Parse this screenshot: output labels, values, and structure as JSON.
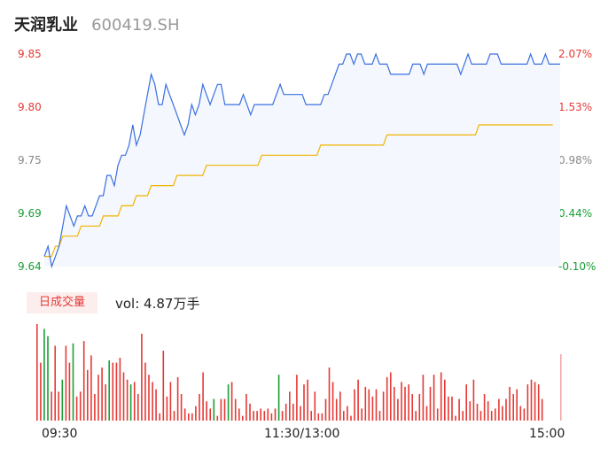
{
  "header": {
    "name": "天润乳业",
    "code": "600419.SH"
  },
  "colors": {
    "up": "#e53935",
    "down": "#1a9e36",
    "price_line": "#3a6fe0",
    "avg_line": "#f0b400",
    "flat": "#888888"
  },
  "volume_panel": {
    "tag": "日成交量",
    "vol_text": "vol: 4.87万手"
  },
  "chart_data": {
    "type": "line",
    "title": "",
    "price_axis": {
      "ticks": [
        "9.85",
        "9.80",
        "9.75",
        "9.69",
        "9.64"
      ],
      "min": 9.64,
      "max": 9.85
    },
    "pct_axis": {
      "ticks": [
        "2.07%",
        "1.53%",
        "0.98%",
        "0.44%",
        "-0.10%"
      ]
    },
    "x_ticks": [
      "09:30",
      "11:30/13:00",
      "15:00"
    ],
    "series": [
      {
        "name": "",
        "values": [
          9.65,
          9.66,
          9.64,
          9.65,
          9.66,
          9.68,
          9.7,
          9.69,
          9.68,
          9.69,
          9.69,
          9.7,
          9.69,
          9.69,
          9.7,
          9.71,
          9.71,
          9.73,
          9.73,
          9.72,
          9.74,
          9.75,
          9.75,
          9.76,
          9.78,
          9.76,
          9.77,
          9.79,
          9.81,
          9.83,
          9.82,
          9.8,
          9.8,
          9.82,
          9.81,
          9.8,
          9.79,
          9.78,
          9.77,
          9.78,
          9.8,
          9.79,
          9.8,
          9.82,
          9.81,
          9.8,
          9.81,
          9.82,
          9.82,
          9.8,
          9.8,
          9.8,
          9.8,
          9.8,
          9.81,
          9.8,
          9.79,
          9.8,
          9.8,
          9.8,
          9.8,
          9.8,
          9.8,
          9.81,
          9.82,
          9.81,
          9.81,
          9.81,
          9.81,
          9.81,
          9.81,
          9.8,
          9.8,
          9.8,
          9.8,
          9.8,
          9.81,
          9.81,
          9.82,
          9.83,
          9.84,
          9.84,
          9.85,
          9.85,
          9.84,
          9.85,
          9.85,
          9.84,
          9.84,
          9.84,
          9.85,
          9.84,
          9.84,
          9.84,
          9.83,
          9.83,
          9.83,
          9.83,
          9.83,
          9.83,
          9.84,
          9.84,
          9.84,
          9.83,
          9.84,
          9.84,
          9.84,
          9.84,
          9.84,
          9.84,
          9.84,
          9.84,
          9.84,
          9.83,
          9.84,
          9.85,
          9.84,
          9.84,
          9.84,
          9.84,
          9.84,
          9.85,
          9.85,
          9.85,
          9.84,
          9.84,
          9.84,
          9.84,
          9.84,
          9.84,
          9.84,
          9.84,
          9.85,
          9.84,
          9.84,
          9.84,
          9.85,
          9.84,
          9.84,
          9.84,
          9.84
        ]
      },
      {
        "name": "",
        "values": [
          9.65,
          9.65,
          9.65,
          9.66,
          9.66,
          9.67,
          9.67,
          9.67,
          9.67,
          9.67,
          9.68,
          9.68,
          9.68,
          9.68,
          9.68,
          9.68,
          9.69,
          9.69,
          9.69,
          9.69,
          9.69,
          9.7,
          9.7,
          9.7,
          9.7,
          9.71,
          9.71,
          9.71,
          9.71,
          9.72,
          9.72,
          9.72,
          9.72,
          9.72,
          9.72,
          9.72,
          9.73,
          9.73,
          9.73,
          9.73,
          9.73,
          9.73,
          9.73,
          9.73,
          9.74,
          9.74,
          9.74,
          9.74,
          9.74,
          9.74,
          9.74,
          9.74,
          9.74,
          9.74,
          9.74,
          9.74,
          9.74,
          9.74,
          9.74,
          9.75,
          9.75,
          9.75,
          9.75,
          9.75,
          9.75,
          9.75,
          9.75,
          9.75,
          9.75,
          9.75,
          9.75,
          9.75,
          9.75,
          9.75,
          9.75,
          9.76,
          9.76,
          9.76,
          9.76,
          9.76,
          9.76,
          9.76,
          9.76,
          9.76,
          9.76,
          9.76,
          9.76,
          9.76,
          9.76,
          9.76,
          9.76,
          9.76,
          9.76,
          9.77,
          9.77,
          9.77,
          9.77,
          9.77,
          9.77,
          9.77,
          9.77,
          9.77,
          9.77,
          9.77,
          9.77,
          9.77,
          9.77,
          9.77,
          9.77,
          9.77,
          9.77,
          9.77,
          9.77,
          9.77,
          9.77,
          9.77,
          9.77,
          9.77,
          9.78,
          9.78,
          9.78,
          9.78,
          9.78,
          9.78,
          9.78,
          9.78,
          9.78,
          9.78,
          9.78,
          9.78,
          9.78,
          9.78,
          9.78,
          9.78,
          9.78,
          9.78,
          9.78,
          9.78,
          9.78
        ]
      }
    ],
    "volume": [
      40,
      24,
      38,
      35,
      12,
      31,
      12,
      17,
      31,
      24,
      32,
      10,
      12,
      33,
      21,
      27,
      11,
      19,
      22,
      15,
      25,
      24,
      24,
      26,
      20,
      17,
      15,
      16,
      11,
      36,
      24,
      19,
      16,
      13,
      3,
      29,
      10,
      16,
      4,
      18,
      11,
      5,
      3,
      3,
      6,
      11,
      20,
      8,
      5,
      9,
      2,
      9,
      9,
      15,
      16,
      9,
      5,
      2,
      11,
      7,
      4,
      4,
      5,
      4,
      5,
      3,
      5,
      19,
      4,
      7,
      12,
      7,
      19,
      6,
      15,
      17,
      4,
      12,
      3,
      3,
      9,
      22,
      16,
      9,
      12,
      4,
      6,
      2,
      13,
      17,
      5,
      14,
      13,
      10,
      13,
      4,
      12,
      18,
      20,
      14,
      9,
      16,
      14,
      15,
      11,
      4,
      11,
      19,
      6,
      14,
      19,
      5,
      20,
      17,
      10,
      10,
      2,
      9,
      4,
      15,
      8,
      17,
      7,
      4,
      11,
      8,
      4,
      5,
      9,
      6,
      9,
      14,
      11,
      13,
      6,
      5,
      15,
      17,
      16,
      15,
      9
    ],
    "volume_dir": [
      "u",
      "u",
      "d",
      "d",
      "u",
      "u",
      "u",
      "d",
      "u",
      "u",
      "d",
      "u",
      "u",
      "u",
      "u",
      "u",
      "u",
      "u",
      "u",
      "u",
      "d",
      "u",
      "u",
      "u",
      "u",
      "u",
      "d",
      "u",
      "u",
      "u",
      "u",
      "u",
      "u",
      "u",
      "u",
      "u",
      "u",
      "u",
      "u",
      "u",
      "u",
      "u",
      "u",
      "u",
      "u",
      "u",
      "u",
      "u",
      "u",
      "d",
      "u",
      "u",
      "u",
      "d",
      "u",
      "u",
      "u",
      "u",
      "u",
      "u",
      "u",
      "u",
      "u",
      "u",
      "u",
      "u",
      "u",
      "d",
      "u",
      "u",
      "u",
      "u",
      "u",
      "u",
      "u",
      "u",
      "u",
      "u",
      "u",
      "u",
      "u",
      "u",
      "u",
      "u",
      "u",
      "u",
      "u",
      "u",
      "u",
      "u",
      "u",
      "u",
      "u",
      "u",
      "u",
      "u",
      "u",
      "u",
      "u",
      "u",
      "u",
      "u",
      "u",
      "u",
      "u",
      "u",
      "u",
      "u",
      "u",
      "u",
      "u",
      "u",
      "u",
      "u",
      "u",
      "u",
      "u",
      "u",
      "u",
      "u",
      "u",
      "u",
      "u",
      "u",
      "u",
      "u",
      "u",
      "u",
      "u",
      "u",
      "u",
      "u",
      "u",
      "u",
      "u",
      "u",
      "u",
      "u",
      "u",
      "u",
      "u"
    ]
  }
}
